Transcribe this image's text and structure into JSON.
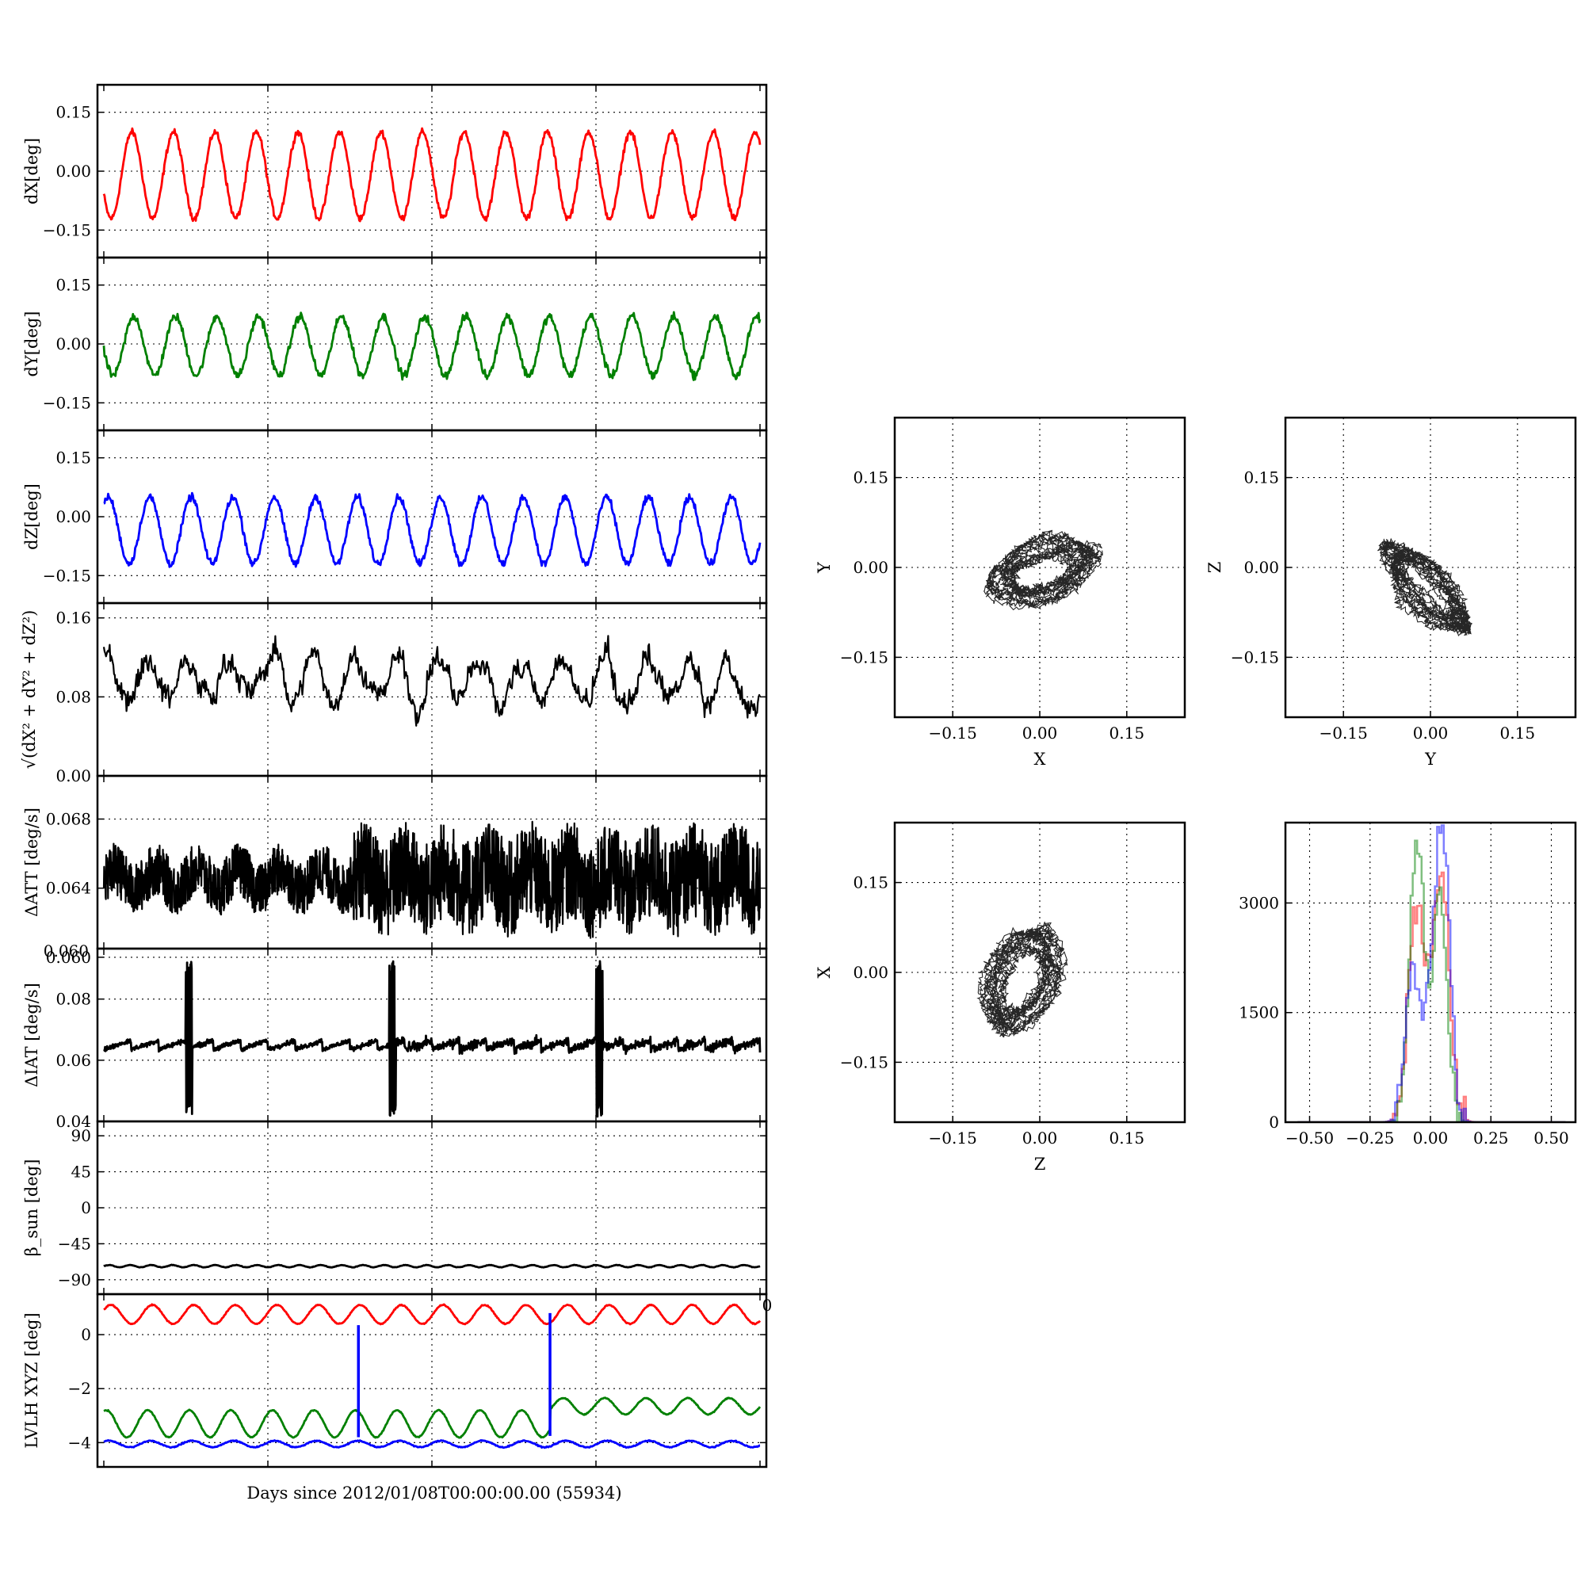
{
  "figure": {
    "xlabel": "Days since 2012/01/08T00:00:00.00 (55934)",
    "stray_tick_label": "0",
    "overlap_tick_label": "0.060"
  },
  "colors": {
    "red": "#ff0000",
    "green": "#008000",
    "blue": "#0000ff",
    "black": "#000000"
  },
  "chart_data": [
    {
      "type": "line",
      "id": "dX",
      "ylabel": "dX[deg]",
      "ylim": [
        -0.22,
        0.22
      ],
      "yticks": [
        -0.15,
        0.0,
        0.15
      ],
      "ytick_labels": [
        "−0.15",
        "0.00",
        "0.15"
      ],
      "grid": true,
      "series": [
        {
          "color": "red",
          "shape": "oscillation",
          "cycles": 15.8,
          "amplitude": 0.11,
          "offset": -0.01,
          "phase": 3.6,
          "noise": 0.008
        }
      ]
    },
    {
      "type": "line",
      "id": "dY",
      "ylabel": "dY[deg]",
      "ylim": [
        -0.22,
        0.22
      ],
      "yticks": [
        -0.15,
        0.0,
        0.15
      ],
      "ytick_labels": [
        "−0.15",
        "0.00",
        "0.15"
      ],
      "grid": true,
      "series": [
        {
          "color": "green",
          "shape": "oscillation",
          "cycles": 15.8,
          "amplitude": 0.075,
          "offset": -0.005,
          "phase": 3.3,
          "noise": 0.01
        }
      ]
    },
    {
      "type": "line",
      "id": "dZ",
      "ylabel": "dZ[deg]",
      "ylim": [
        -0.22,
        0.22
      ],
      "yticks": [
        -0.15,
        0.0,
        0.15
      ],
      "ytick_labels": [
        "−0.15",
        "0.00",
        "0.15"
      ],
      "grid": true,
      "series": [
        {
          "color": "blue",
          "shape": "oscillation",
          "cycles": 15.8,
          "amplitude": 0.085,
          "offset": -0.035,
          "phase": 0.9,
          "noise": 0.009
        }
      ]
    },
    {
      "type": "line",
      "id": "dR",
      "ylabel": "√(dX² + dY² + dZ²)",
      "ylim": [
        0.0,
        0.175
      ],
      "yticks": [
        0.0,
        0.08,
        0.16
      ],
      "ytick_labels": [
        "0.00",
        "0.08",
        "0.16"
      ],
      "grid": true,
      "series": [
        {
          "color": "black",
          "shape": "wave_noise",
          "cycles": 15.8,
          "amplitude": 0.022,
          "offset": 0.105,
          "noise": 0.014,
          "drift": -0.015
        }
      ]
    },
    {
      "type": "line",
      "id": "dATT",
      "ylabel": "ΔATT [deg/s]",
      "ylim": [
        0.0605,
        0.0705
      ],
      "yticks": [
        0.06,
        0.064,
        0.068
      ],
      "ytick_labels": [
        "0.060",
        "0.064",
        "0.068"
      ],
      "grid": true,
      "series": [
        {
          "color": "black",
          "shape": "dense_noise",
          "center": 0.0645,
          "spread": 0.0015,
          "burst_spread": 0.0028
        }
      ]
    },
    {
      "type": "line",
      "id": "dIAT",
      "ylabel": "ΔIAT [deg/s]",
      "ylim": [
        0.04,
        0.0965
      ],
      "yticks": [
        0.04,
        0.06,
        0.08
      ],
      "ytick_labels": [
        "0.04",
        "0.06",
        "0.08"
      ],
      "grid": true,
      "series": [
        {
          "color": "black",
          "shape": "sawtooth_spikes",
          "center": 0.065,
          "spikes_at": [
            0.13,
            0.44,
            0.755
          ],
          "spike_low": 0.0415,
          "spike_high": 0.0925
        }
      ]
    },
    {
      "type": "line",
      "id": "beta",
      "ylabel": "β_sun [deg]",
      "ylim": [
        -108,
        108
      ],
      "yticks": [
        -90,
        -45,
        0,
        45,
        90
      ],
      "ytick_labels": [
        "−90",
        "−45",
        "0",
        "45",
        "90"
      ],
      "grid": true,
      "series": [
        {
          "color": "black",
          "shape": "oscillation",
          "cycles": 31,
          "amplitude": 1.4,
          "offset": -73,
          "phase": 0,
          "noise": 0.3
        }
      ]
    },
    {
      "type": "line",
      "id": "lvlh",
      "ylabel": "LVLH XYZ [deg]",
      "ylim": [
        -4.9,
        1.5
      ],
      "yticks": [
        -4,
        -2,
        0
      ],
      "ytick_labels": [
        "−4",
        "−2",
        "0"
      ],
      "grid": true,
      "series": [
        {
          "color": "red",
          "shape": "oscillation",
          "cycles": 15.8,
          "amplitude": 0.35,
          "offset": 0.75,
          "phase": 0.5,
          "noise": 0.02
        },
        {
          "color": "green",
          "shape": "oscillation",
          "cycles": 15.8,
          "amplitude": 0.5,
          "offset": -3.3,
          "phase": 1.2,
          "noise": 0.02,
          "step_at": 0.68,
          "step_offset": -2.65,
          "step_amplitude": 0.3
        },
        {
          "color": "blue",
          "shape": "oscillation",
          "cycles": 15.8,
          "amplitude": 0.12,
          "offset": -4.05,
          "phase": 0.8,
          "noise": 0.02
        }
      ],
      "vlines": [
        {
          "x": 0.388,
          "from": -3.8,
          "to": 0.35,
          "color": "blue"
        },
        {
          "x": 0.68,
          "from": -3.75,
          "to": 0.8,
          "color": "blue"
        }
      ]
    },
    {
      "type": "scatter",
      "id": "XY",
      "xlabel": "X",
      "ylabel": "Y",
      "xlim": [
        -0.25,
        0.25
      ],
      "ylim": [
        -0.25,
        0.25
      ],
      "ticks": [
        -0.15,
        0.0,
        0.15
      ],
      "tick_labels": [
        "−0.15",
        "0.00",
        "0.15"
      ],
      "grid": true,
      "ellipse": {
        "cx": 0.005,
        "cy": -0.005,
        "a": 0.095,
        "b": 0.055,
        "angle_deg": 18
      }
    },
    {
      "type": "scatter",
      "id": "YZ",
      "xlabel": "Y",
      "ylabel": "Z",
      "xlim": [
        -0.25,
        0.25
      ],
      "ylim": [
        -0.25,
        0.25
      ],
      "ticks": [
        -0.15,
        0.0,
        0.15
      ],
      "tick_labels": [
        "−0.15",
        "0.00",
        "0.15"
      ],
      "grid": true,
      "ellipse": {
        "cx": -0.005,
        "cy": -0.035,
        "a": 0.105,
        "b": 0.035,
        "angle_deg": -45
      }
    },
    {
      "type": "scatter",
      "id": "ZX",
      "xlabel": "Z",
      "ylabel": "X",
      "xlim": [
        -0.25,
        0.25
      ],
      "ylim": [
        -0.25,
        0.25
      ],
      "ticks": [
        -0.15,
        0.0,
        0.15
      ],
      "tick_labels": [
        "−0.15",
        "0.00",
        "0.15"
      ],
      "grid": true,
      "ellipse": {
        "cx": -0.03,
        "cy": -0.01,
        "a": 0.095,
        "b": 0.065,
        "angle_deg": 65
      }
    },
    {
      "type": "histogram",
      "id": "hist",
      "xlim": [
        -0.6,
        0.6
      ],
      "ylim": [
        0,
        4100
      ],
      "xticks": [
        -0.5,
        -0.25,
        0.0,
        0.25,
        0.5
      ],
      "xtick_labels": [
        "−0.50",
        "−0.25",
        "0.00",
        "0.25",
        "0.50"
      ],
      "yticks": [
        0,
        1500,
        3000
      ],
      "ytick_labels": [
        "0",
        "1500",
        "3000"
      ],
      "grid": true,
      "series": [
        {
          "color": "red",
          "peaks": [
            [
              -0.06,
              2900,
              0.035
            ],
            [
              0.04,
              3300,
              0.035
            ]
          ]
        },
        {
          "color": "green",
          "peaks": [
            [
              -0.06,
              3900,
              0.03
            ],
            [
              0.035,
              3000,
              0.03
            ]
          ]
        },
        {
          "color": "blue",
          "peaks": [
            [
              -0.08,
              1900,
              0.03
            ],
            [
              0.01,
              1700,
              0.04
            ],
            [
              0.05,
              3000,
              0.03
            ]
          ]
        }
      ]
    }
  ]
}
